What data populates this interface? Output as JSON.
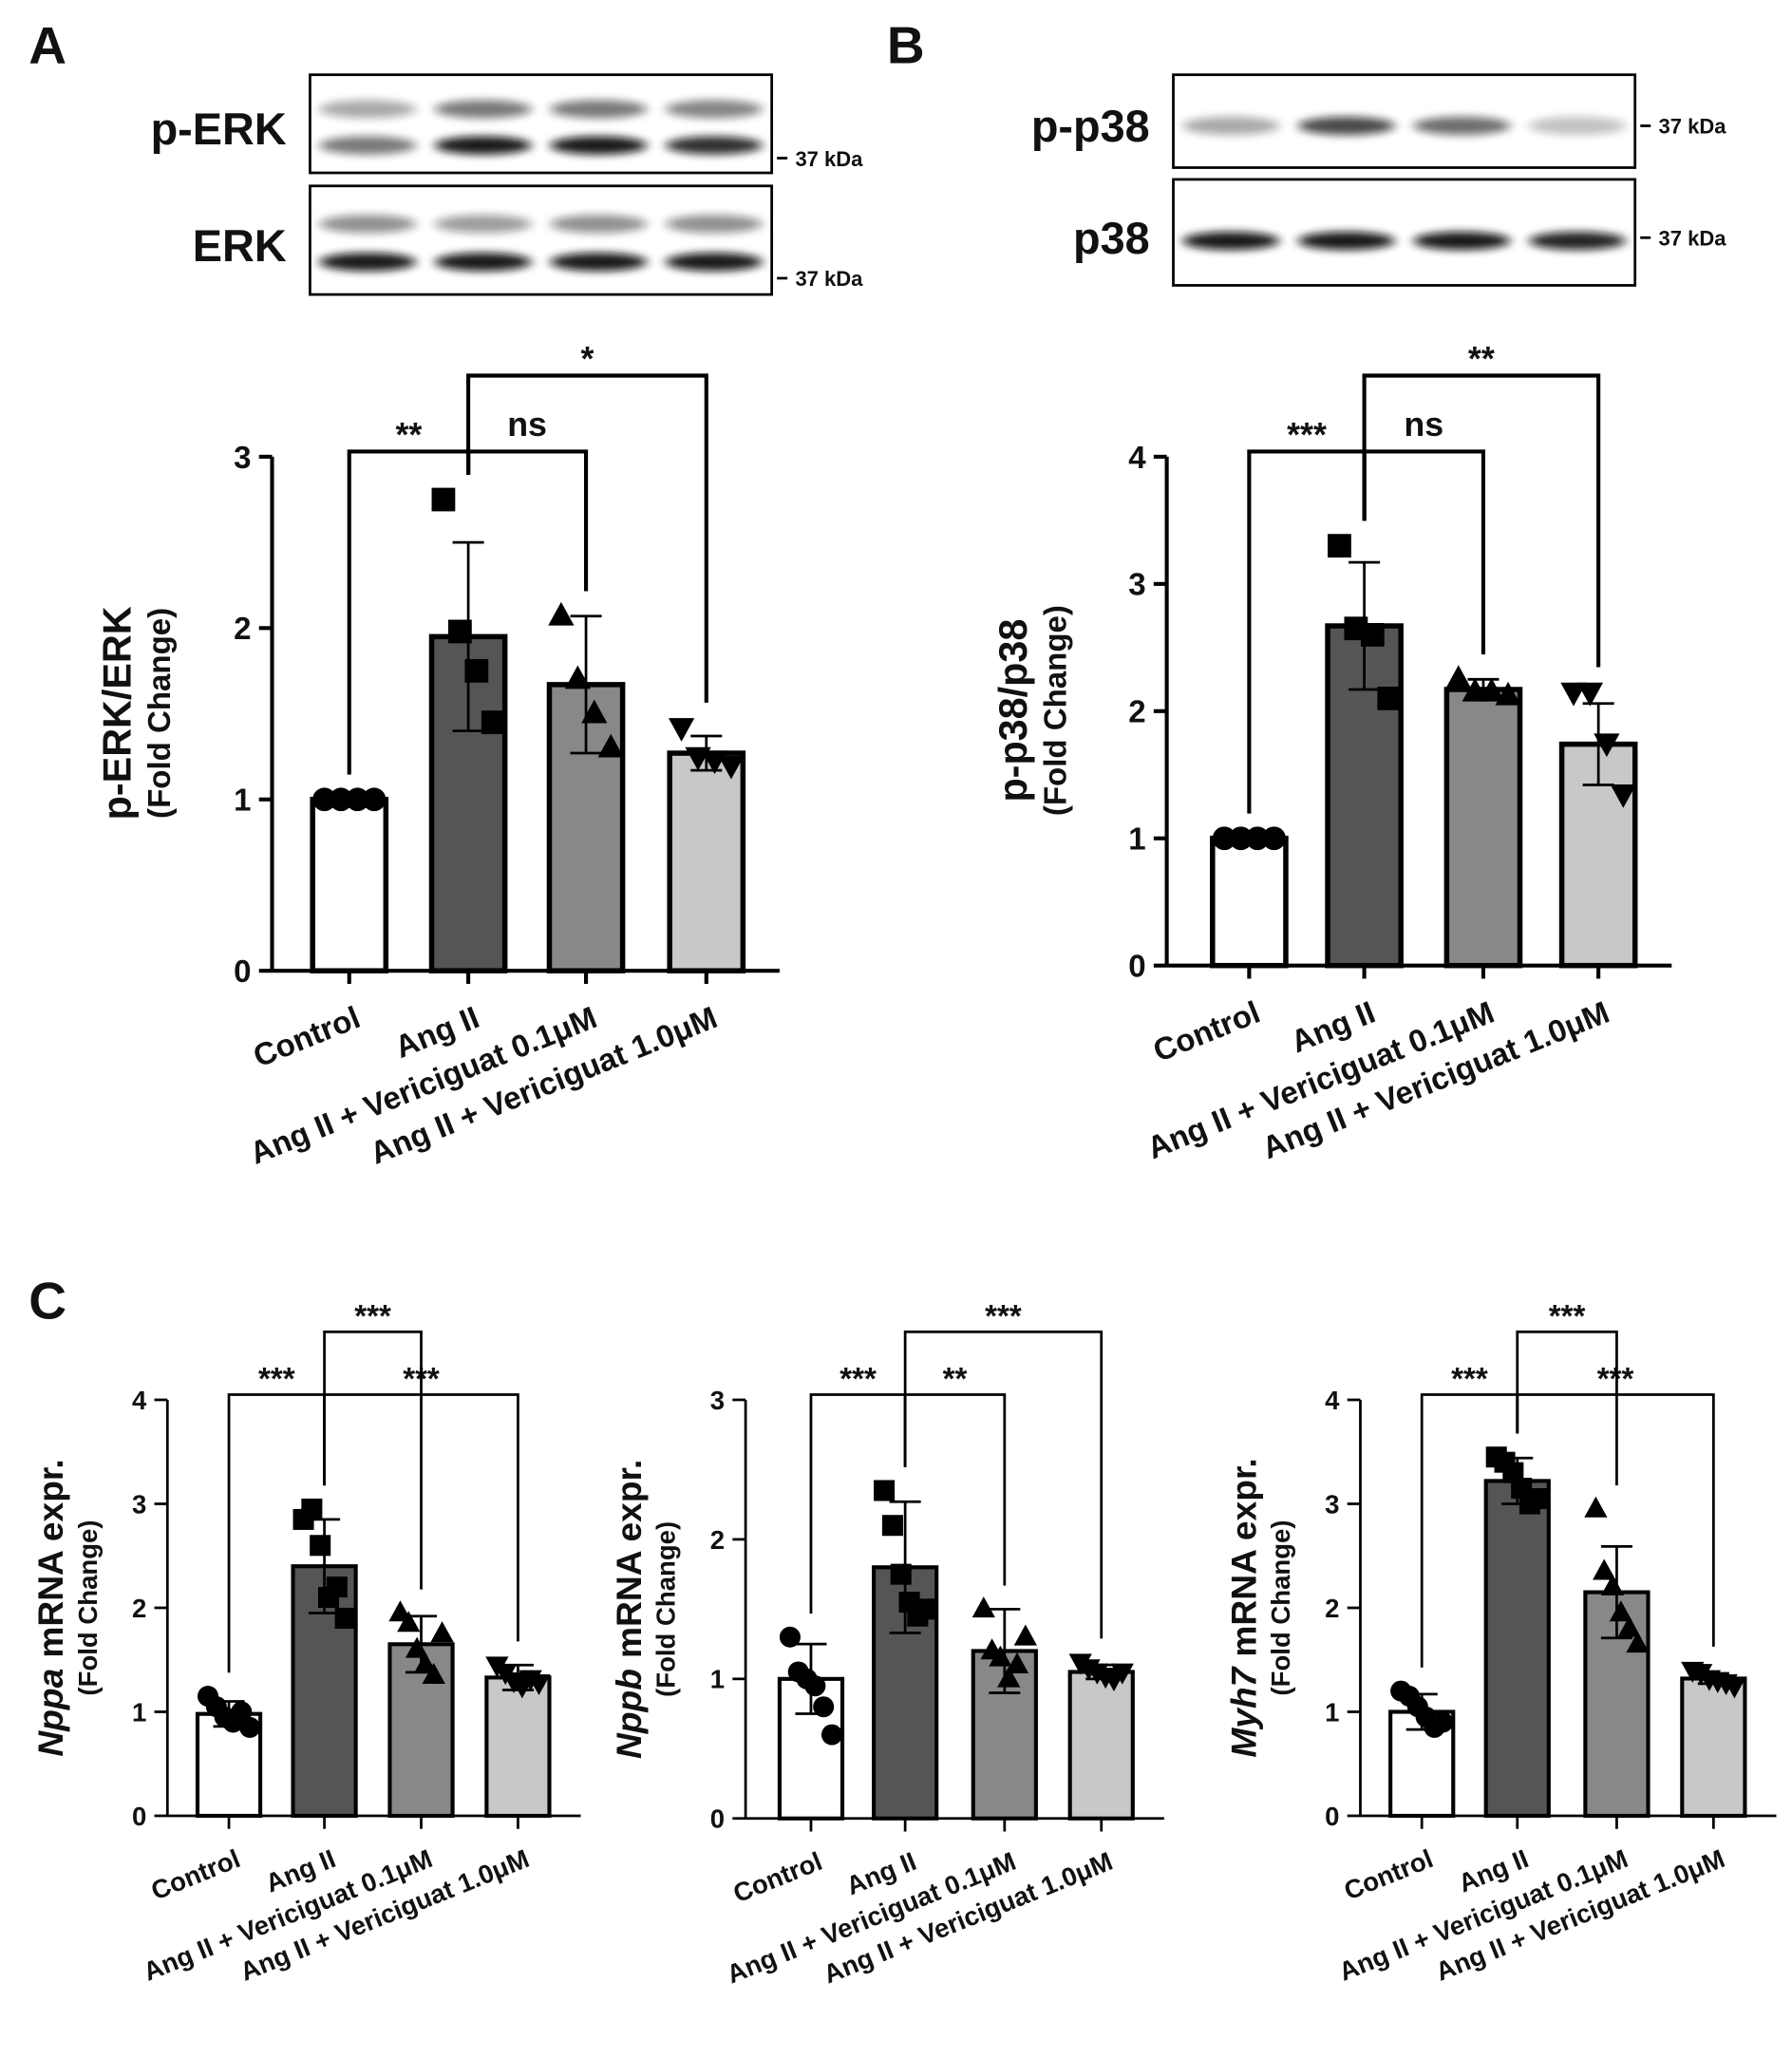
{
  "panel_labels": [
    "A",
    "B",
    "C"
  ],
  "blots": [
    {
      "rows": [
        {
          "label": "p-ERK",
          "marker": "37 kDa"
        },
        {
          "label": "ERK",
          "marker": "37 kDa"
        }
      ]
    },
    {
      "rows": [
        {
          "label": "p-p38",
          "marker": "37 kDa"
        },
        {
          "label": "p38",
          "marker": "37 kDa"
        }
      ]
    }
  ],
  "chart_data": [
    {
      "type": "bar",
      "ylabel": "p-ERK/ERK",
      "ylabel_sub": "(Fold Change)",
      "categories": [
        "Control",
        "Ang II",
        "Ang II + Vericiguat 0.1μM",
        "Ang II + Vericiguat 1.0μM"
      ],
      "values": [
        1,
        1.95,
        1.67,
        1.27
      ],
      "errors": [
        0,
        0.55,
        0.4,
        0.1
      ],
      "colors": [
        "#ffffff",
        "#555555",
        "#888888",
        "#c8c8c8"
      ],
      "markers": [
        "circle",
        "square",
        "triangle-up",
        "triangle-down"
      ],
      "points": [
        [
          1,
          1,
          1,
          1
        ],
        [
          2.75,
          1.98,
          1.75,
          1.45
        ],
        [
          2.07,
          1.7,
          1.5,
          1.3
        ],
        [
          1.42,
          1.25,
          1.23,
          1.2
        ]
      ],
      "ylim": [
        0,
        3
      ],
      "yticks": [
        0,
        1,
        2,
        3
      ],
      "brackets": [
        {
          "from": 0,
          "to": 1,
          "label": "**"
        },
        {
          "from": 1,
          "to": 2,
          "label": "ns"
        },
        {
          "from": 1,
          "to": 3,
          "label": "*"
        }
      ]
    },
    {
      "type": "bar",
      "ylabel": "p-p38/p38",
      "ylabel_sub": "(Fold Change)",
      "categories": [
        "Control",
        "Ang II",
        "Ang II + Vericiguat 0.1μM",
        "Ang II + Vericiguat 1.0μM"
      ],
      "values": [
        1,
        2.67,
        2.17,
        1.74
      ],
      "errors": [
        0,
        0.5,
        0.08,
        0.32
      ],
      "colors": [
        "#ffffff",
        "#555555",
        "#888888",
        "#c8c8c8"
      ],
      "markers": [
        "circle",
        "square",
        "triangle-up",
        "triangle-down"
      ],
      "points": [
        [
          1,
          1,
          1,
          1
        ],
        [
          3.3,
          2.65,
          2.6,
          2.1
        ],
        [
          2.25,
          2.15,
          2.15,
          2.12
        ],
        [
          2.15,
          2.15,
          1.75,
          1.35
        ]
      ],
      "ylim": [
        0,
        4
      ],
      "yticks": [
        0,
        1,
        2,
        3,
        4
      ],
      "brackets": [
        {
          "from": 0,
          "to": 1,
          "label": "***"
        },
        {
          "from": 1,
          "to": 2,
          "label": "ns"
        },
        {
          "from": 1,
          "to": 3,
          "label": "**"
        }
      ]
    },
    {
      "type": "bar",
      "ylabel_gene": "Nppa",
      "ylabel": "mRNA expr.",
      "ylabel_sub": "(Fold Change)",
      "categories": [
        "Control",
        "Ang II",
        "Ang II + Vericiguat 0.1μM",
        "Ang II + Vericiguat 1.0μM"
      ],
      "values": [
        0.98,
        2.4,
        1.65,
        1.33
      ],
      "errors": [
        0.12,
        0.45,
        0.27,
        0.12
      ],
      "colors": [
        "#ffffff",
        "#555555",
        "#888888",
        "#c8c8c8"
      ],
      "markers": [
        "circle",
        "square",
        "triangle-up",
        "triangle-down"
      ],
      "points": [
        [
          1.15,
          1.05,
          0.95,
          0.9,
          1.0,
          0.85
        ],
        [
          2.85,
          2.95,
          2.6,
          2.1,
          2.2,
          1.9
        ],
        [
          1.95,
          1.85,
          1.6,
          1.45,
          1.35,
          1.75
        ],
        [
          1.45,
          1.38,
          1.3,
          1.25,
          1.32,
          1.28
        ]
      ],
      "ylim": [
        0,
        4
      ],
      "yticks": [
        0,
        1,
        2,
        3,
        4
      ],
      "brackets": [
        {
          "from": 0,
          "to": 1,
          "label": "***"
        },
        {
          "from": 1,
          "to": 3,
          "label": "***"
        },
        {
          "from": 1,
          "to": 2,
          "label": "***"
        }
      ]
    },
    {
      "type": "bar",
      "ylabel_gene": "Nppb",
      "ylabel": "mRNA expr.",
      "ylabel_sub": "(Fold Change)",
      "categories": [
        "Control",
        "Ang II",
        "Ang II + Vericiguat 0.1μM",
        "Ang II + Vericiguat 1.0μM"
      ],
      "values": [
        1.0,
        1.8,
        1.2,
        1.05
      ],
      "errors": [
        0.25,
        0.47,
        0.3,
        0.05
      ],
      "colors": [
        "#ffffff",
        "#555555",
        "#888888",
        "#c8c8c8"
      ],
      "markers": [
        "circle",
        "square",
        "triangle-up",
        "triangle-down"
      ],
      "points": [
        [
          1.3,
          1.05,
          1.0,
          0.95,
          0.8,
          0.6
        ],
        [
          2.35,
          2.1,
          1.75,
          1.55,
          1.45,
          1.5
        ],
        [
          1.5,
          1.2,
          1.15,
          1.0,
          1.1,
          1.3
        ],
        [
          1.12,
          1.08,
          1.05,
          1.02,
          1.0,
          1.05
        ]
      ],
      "ylim": [
        0,
        3
      ],
      "yticks": [
        0,
        1,
        2,
        3
      ],
      "brackets": [
        {
          "from": 0,
          "to": 1,
          "label": "***"
        },
        {
          "from": 1,
          "to": 2,
          "label": "**"
        },
        {
          "from": 1,
          "to": 3,
          "label": "***"
        }
      ]
    },
    {
      "type": "bar",
      "ylabel_gene": "Myh7",
      "ylabel": "mRNA expr.",
      "ylabel_sub": "(Fold Change)",
      "categories": [
        "Control",
        "Ang II",
        "Ang II + Vericiguat 0.1μM",
        "Ang II + Vericiguat 1.0μM"
      ],
      "values": [
        1.0,
        3.22,
        2.15,
        1.32
      ],
      "errors": [
        0.17,
        0.22,
        0.44,
        0.05
      ],
      "colors": [
        "#ffffff",
        "#555555",
        "#888888",
        "#c8c8c8"
      ],
      "markers": [
        "circle",
        "square",
        "triangle-up",
        "triangle-down"
      ],
      "points": [
        [
          1.2,
          1.15,
          1.05,
          0.95,
          0.85,
          0.9
        ],
        [
          3.45,
          3.4,
          3.3,
          3.15,
          3.0,
          3.05
        ],
        [
          2.95,
          2.35,
          2.2,
          1.95,
          1.8,
          1.65
        ],
        [
          1.4,
          1.38,
          1.32,
          1.3,
          1.28,
          1.25
        ]
      ],
      "ylim": [
        0,
        4
      ],
      "yticks": [
        0,
        1,
        2,
        3,
        4
      ],
      "brackets": [
        {
          "from": 0,
          "to": 1,
          "label": "***"
        },
        {
          "from": 1,
          "to": 3,
          "label": "***"
        },
        {
          "from": 1,
          "to": 2,
          "label": "***"
        }
      ]
    }
  ]
}
